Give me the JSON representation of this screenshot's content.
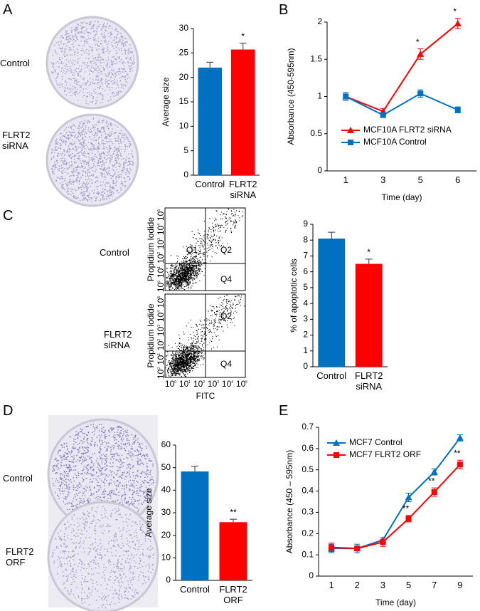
{
  "figure": {
    "panel_letters": [
      "A",
      "B",
      "C",
      "D",
      "E"
    ],
    "panel_a_rows": [
      "Control",
      "FLRT2 siRNA"
    ],
    "panel_c_rows": [
      "Control",
      "FLRT2 siRNA"
    ],
    "panel_d_rows": [
      "Control",
      "FLRT2 ORF"
    ],
    "flow": {
      "y_label": "Propidium Iodide",
      "x_label": "FITC",
      "tick_base": "10",
      "tick_exponents": [
        "0",
        "1",
        "2",
        "3",
        "4",
        "5"
      ],
      "gates_top": [
        "Q1",
        "Q2",
        "Q4"
      ],
      "gates_bottom": [
        "Q2",
        "Q4"
      ]
    }
  },
  "chart_data": [
    {
      "type": "bar",
      "categories": [
        "Control",
        "FLRT2 siRNA"
      ],
      "values": [
        22,
        25.7
      ],
      "errors": [
        1.1,
        1.3
      ],
      "colors": [
        "#0070c0",
        "#ff0000"
      ],
      "significance": [
        null,
        "*"
      ],
      "ylabel": "Average size",
      "ylim": [
        0,
        30
      ],
      "yticks": [
        0,
        5,
        10,
        15,
        20,
        25,
        30
      ]
    },
    {
      "type": "line",
      "categories": [
        "1",
        "3",
        "5",
        "6"
      ],
      "xlabel": "Time (day)",
      "ylabel": "Absorbance (450-595nm)",
      "ylim": [
        0,
        2
      ],
      "yticks": [
        0,
        0.5,
        1,
        1.5,
        2
      ],
      "legend": "lower right",
      "series": [
        {
          "name": "MCF10A FLRT2 siRNA",
          "color": "#ff0000",
          "marker": "triangle",
          "values": [
            1.0,
            0.8,
            1.57,
            1.98
          ],
          "errors": [
            0.05,
            0.04,
            0.07,
            0.07
          ],
          "significance": [
            null,
            null,
            "*",
            "*"
          ]
        },
        {
          "name": "MCF10A Control",
          "color": "#0070c0",
          "marker": "square",
          "values": [
            1.0,
            0.75,
            1.04,
            0.82
          ],
          "errors": [
            0.05,
            0.03,
            0.05,
            0.04
          ],
          "significance": [
            null,
            null,
            null,
            null
          ]
        }
      ]
    },
    {
      "type": "bar",
      "categories": [
        "Control",
        "FLRT2 siRNA"
      ],
      "values": [
        8.1,
        6.5
      ],
      "errors": [
        0.4,
        0.3
      ],
      "colors": [
        "#0070c0",
        "#ff0000"
      ],
      "significance": [
        null,
        "*"
      ],
      "ylabel": "% of apoptotic cells",
      "ylim": [
        0,
        9
      ],
      "yticks": [
        0,
        1,
        2,
        3,
        4,
        5,
        6,
        7,
        8,
        9
      ]
    },
    {
      "type": "bar",
      "categories": [
        "Control",
        "FLRT2 ORF"
      ],
      "values": [
        48.3,
        25.8
      ],
      "errors": [
        2.3,
        1.3
      ],
      "colors": [
        "#0070c0",
        "#ff0000"
      ],
      "significance": [
        null,
        "**"
      ],
      "ylabel": "Average size",
      "ylim": [
        0,
        60
      ],
      "yticks": [
        0,
        10,
        20,
        30,
        40,
        50,
        60
      ]
    },
    {
      "type": "line",
      "categories": [
        "1",
        "2",
        "3",
        "5",
        "7",
        "9"
      ],
      "xlabel": "Time (day)",
      "ylabel": "Absorbance (450 – 595nm)",
      "ylim": [
        0,
        0.7
      ],
      "yticks": [
        0,
        0.1,
        0.2,
        0.3,
        0.4,
        0.5,
        0.6,
        0.7
      ],
      "legend": "upper left",
      "series": [
        {
          "name": "MCF7 Control",
          "color": "#0070c0",
          "marker": "triangle",
          "values": [
            0.13,
            0.13,
            0.17,
            0.37,
            0.49,
            0.65
          ],
          "errors": [
            0.02,
            0.02,
            0.01,
            0.02,
            0.015,
            0.015
          ],
          "significance": [
            null,
            null,
            null,
            null,
            null,
            null
          ]
        },
        {
          "name": "MCF7 FLRT2 ORF",
          "color": "#ff0000",
          "marker": "square",
          "values": [
            0.135,
            0.13,
            0.16,
            0.27,
            0.395,
            0.525
          ],
          "errors": [
            0.02,
            0.01,
            0.02,
            0.015,
            0.02,
            0.02
          ],
          "significance": [
            null,
            null,
            null,
            "**",
            "**",
            "**"
          ]
        }
      ]
    }
  ]
}
